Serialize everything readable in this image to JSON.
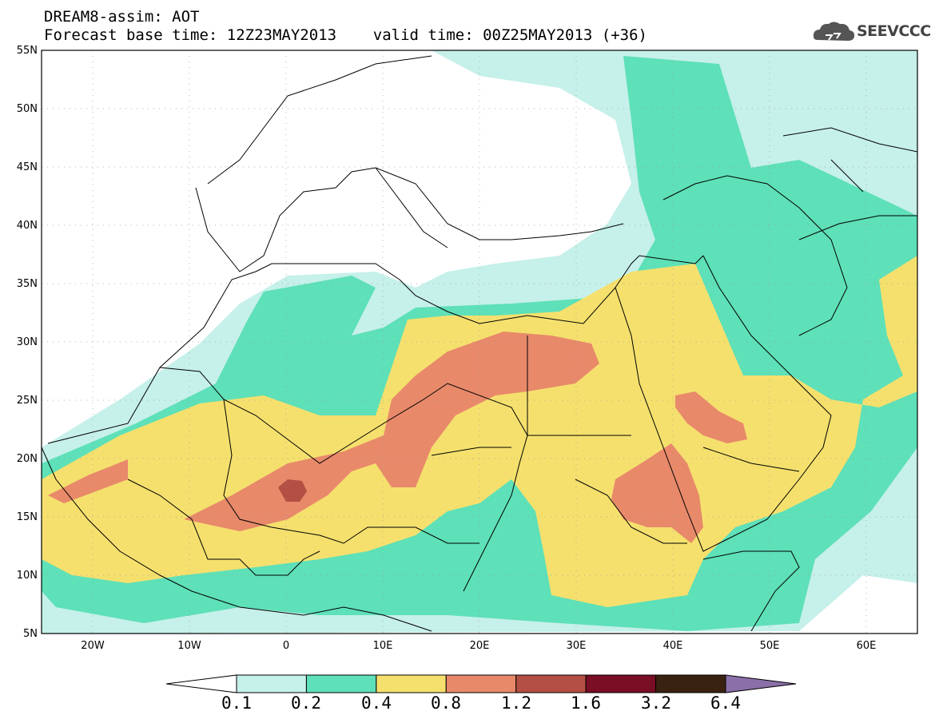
{
  "title": {
    "line1": "DREAM8-assim: AOT",
    "line2": "Forecast base time: 12Z23MAY2013    valid time: 00Z25MAY2013 (+36)"
  },
  "logo": {
    "text": "SEEVCCC",
    "icon": "cloud-icon"
  },
  "map": {
    "lon_range": [
      -25,
      65
    ],
    "lat_range": [
      5,
      55
    ],
    "x_ticks": [
      "20W",
      "10W",
      "0",
      "10E",
      "20E",
      "30E",
      "40E",
      "50E",
      "60E"
    ],
    "y_ticks": [
      "5N",
      "10N",
      "15N",
      "20N",
      "25N",
      "30N",
      "35N",
      "40N",
      "45N",
      "50N",
      "55N"
    ],
    "grid": "dotted"
  },
  "colorbar": {
    "labels": [
      "0.1",
      "0.2",
      "0.4",
      "0.8",
      "1.2",
      "1.6",
      "3.2",
      "6.4"
    ],
    "colors": [
      "#c6f0ea",
      "#5ee0b8",
      "#f5e06e",
      "#e8896a",
      "#b44f43",
      "#7a0e24",
      "#3a2210",
      "#8a6fa8"
    ],
    "under_color": "#ffffff",
    "over_color": "#8a6fa8"
  }
}
